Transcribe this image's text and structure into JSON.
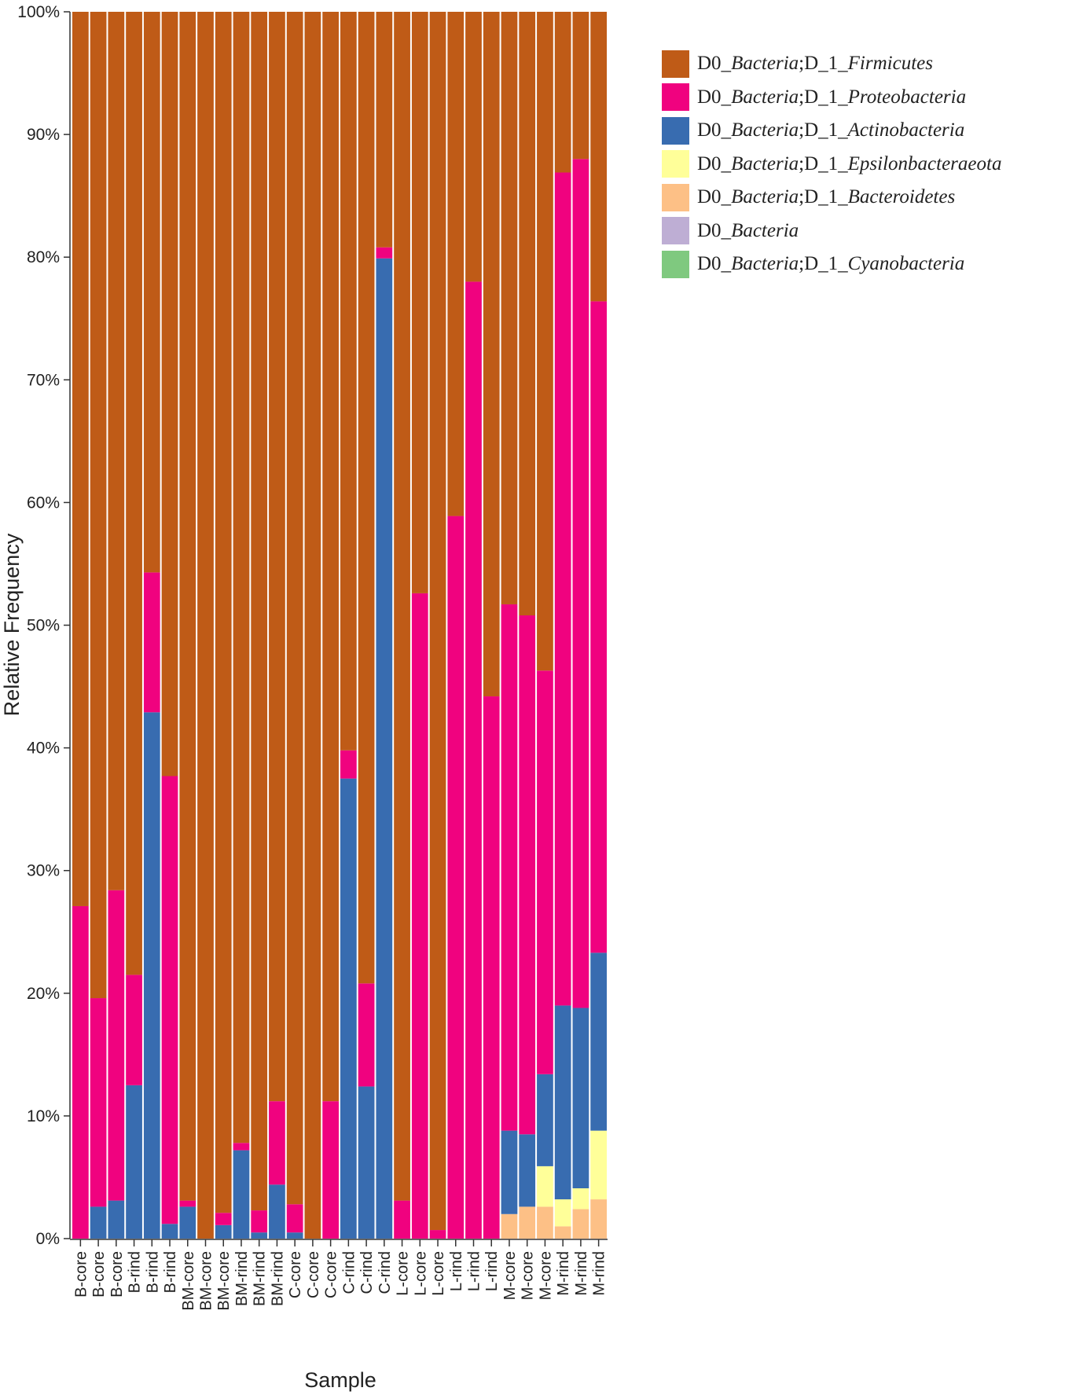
{
  "chart_data": {
    "type": "bar",
    "stacked": true,
    "xlabel": "Sample",
    "ylabel": "Relative Frequency",
    "ylim": [
      0,
      100
    ],
    "yticks": [
      "0%",
      "10%",
      "20%",
      "30%",
      "40%",
      "50%",
      "60%",
      "70%",
      "80%",
      "90%",
      "100%"
    ],
    "categories": [
      "B-core",
      "B-core",
      "B-core",
      "B-rind",
      "B-rind",
      "B-rind",
      "BM-core",
      "BM-core",
      "BM-core",
      "BM-rind",
      "BM-rind",
      "BM-rind",
      "C-core",
      "C-core",
      "C-core",
      "C-rind",
      "C-rind",
      "C-rind",
      "L-core",
      "L-core",
      "L-core",
      "L-rind",
      "L-rind",
      "L-rind",
      "M-core",
      "M-core",
      "M-core",
      "M-rind",
      "M-rind",
      "M-rind"
    ],
    "series": [
      {
        "name": "D0_Bacteria;D_1_Cyanobacteria",
        "color": "#7fc97f",
        "values": [
          0,
          0,
          0,
          0,
          0,
          0,
          0,
          0,
          0,
          0,
          0,
          0,
          0,
          0,
          0,
          0,
          0,
          0,
          0,
          0,
          0,
          0,
          0,
          0,
          0,
          0,
          0,
          0,
          0,
          0
        ]
      },
      {
        "name": "D0_Bacteria",
        "color": "#beaed4",
        "values": [
          0,
          0,
          0,
          0,
          0,
          0,
          0,
          0,
          0,
          0,
          0,
          0,
          0,
          0,
          0,
          0,
          0,
          0,
          0,
          0,
          0,
          0,
          0,
          0,
          0,
          0,
          0,
          0,
          0,
          0
        ]
      },
      {
        "name": "D0_Bacteria;D_1_Bacteroidetes",
        "color": "#fdc086",
        "values": [
          0,
          0,
          0,
          0,
          0,
          0,
          0,
          0,
          0,
          0,
          0,
          0,
          0,
          0,
          0,
          0,
          0,
          0,
          0,
          0,
          0,
          0,
          0,
          0,
          2.0,
          2.6,
          2.6,
          1.0,
          2.4,
          3.2
        ]
      },
      {
        "name": "D0_Bacteria;D_1_Epsilonbacteraeota",
        "color": "#ffff99",
        "values": [
          0,
          0,
          0,
          0,
          0,
          0,
          0,
          0,
          0,
          0,
          0,
          0,
          0,
          0,
          0,
          0,
          0,
          0,
          0,
          0,
          0,
          0,
          0,
          0,
          0,
          0,
          3.3,
          2.2,
          1.7,
          5.6
        ]
      },
      {
        "name": "D0_Bacteria;D_1_Actinobacteria",
        "color": "#386cb0",
        "values": [
          0,
          2.6,
          3.1,
          12.5,
          42.9,
          1.2,
          2.6,
          0,
          1.1,
          7.2,
          0.5,
          4.4,
          0.5,
          0,
          0,
          37.5,
          12.4,
          79.9,
          0,
          0,
          0,
          0,
          0,
          0,
          6.8,
          5.9,
          7.5,
          15.8,
          14.7,
          14.5
        ]
      },
      {
        "name": "D0_Bacteria;D_1_Proteobacteria",
        "color": "#f0027f",
        "values": [
          27.1,
          17.0,
          25.3,
          9.0,
          11.4,
          36.5,
          0.5,
          0,
          1.0,
          0.6,
          1.8,
          6.8,
          2.3,
          0,
          11.2,
          2.3,
          8.4,
          0.9,
          3.1,
          52.6,
          0.7,
          58.9,
          78.0,
          44.2,
          42.9,
          42.3,
          32.9,
          67.9,
          69.2,
          53.1
        ]
      },
      {
        "name": "D0_Bacteria;D_1_Firmicutes",
        "color": "#bf5b17",
        "values": [
          72.9,
          80.4,
          71.6,
          78.5,
          45.7,
          62.3,
          96.9,
          100,
          97.9,
          92.2,
          97.7,
          88.8,
          97.2,
          100,
          88.8,
          60.2,
          79.2,
          19.2,
          96.9,
          47.4,
          99.3,
          41.1,
          22.0,
          55.8,
          48.3,
          49.2,
          53.7,
          13.1,
          12.0,
          23.6
        ]
      }
    ]
  },
  "legend": [
    {
      "color": "#bf5b17",
      "prefix": "D0_",
      "genus": "Bacteria",
      "sep": ";D_1_",
      "phylum": "Firmicutes"
    },
    {
      "color": "#f0027f",
      "prefix": "D0_",
      "genus": "Bacteria",
      "sep": ";D_1_",
      "phylum": "Proteobacteria"
    },
    {
      "color": "#386cb0",
      "prefix": "D0_",
      "genus": "Bacteria",
      "sep": ";D_1_",
      "phylum": "Actinobacteria"
    },
    {
      "color": "#ffff99",
      "prefix": "D0_",
      "genus": "Bacteria",
      "sep": ";D_1_",
      "phylum": "Epsilonbacteraeota"
    },
    {
      "color": "#fdc086",
      "prefix": "D0_",
      "genus": "Bacteria",
      "sep": ";D_1_",
      "phylum": "Bacteroidetes"
    },
    {
      "color": "#beaed4",
      "prefix": "D0_",
      "genus": "Bacteria",
      "sep": "",
      "phylum": ""
    },
    {
      "color": "#7fc97f",
      "prefix": "D0_",
      "genus": "Bacteria",
      "sep": ";D_1_",
      "phylum": "Cyanobacteria"
    }
  ]
}
